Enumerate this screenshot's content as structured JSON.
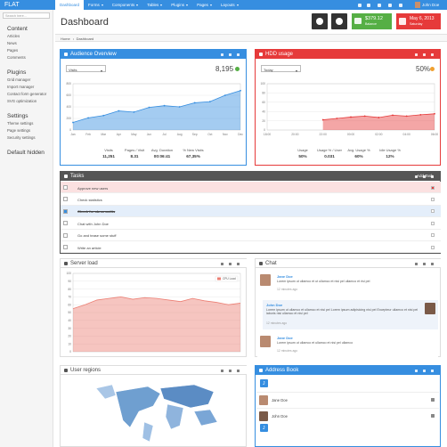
{
  "navbar": {
    "brand": "FLAT",
    "items": [
      "Dashboard",
      "Forms",
      "Components",
      "Tables",
      "Plugins",
      "Pages",
      "Layouts"
    ],
    "user": "John Doe"
  },
  "sidebar": {
    "search_placeholder": "Search here...",
    "sections": [
      {
        "title": "Content",
        "items": [
          "Articles",
          "News",
          "Pages",
          "Comments"
        ]
      },
      {
        "title": "Plugins",
        "items": [
          "Grid manager",
          "Import manager",
          "Contact form generator",
          "SVG optimization"
        ]
      },
      {
        "title": "Settings",
        "items": [
          "Theme settings",
          "Page settings",
          "Security settings"
        ]
      },
      {
        "title": "Default hidden",
        "items": []
      }
    ]
  },
  "header": {
    "title": "Dashboard",
    "balance": {
      "amount": "$379.12",
      "label": "Balance"
    },
    "date": {
      "date": "May 6, 2013",
      "day": "Saturday"
    }
  },
  "breadcrumb": [
    "Home",
    "Dashboard"
  ],
  "audience": {
    "title": "Audience Overview",
    "select": "Visits",
    "total": "8,195",
    "stats": [
      {
        "label": "Visits",
        "value": "11,251"
      },
      {
        "label": "Pages / Visit",
        "value": "8.31"
      },
      {
        "label": "Avg. Duration",
        "value": "00:06:41"
      },
      {
        "label": "% New Visits",
        "value": "67,35%"
      }
    ]
  },
  "hdd": {
    "title": "HDD usage",
    "select": "Today",
    "total": "50%",
    "stats": [
      {
        "label": "Usage",
        "value": "50%"
      },
      {
        "label": "Usage % / User",
        "value": "0.031"
      },
      {
        "label": "Avg. Usage %",
        "value": "60%"
      },
      {
        "label": "Idle Usage %",
        "value": "12%"
      }
    ]
  },
  "tasks": {
    "title": "Tasks",
    "add": "Add Task",
    "items": [
      {
        "text": "Approve new users",
        "state": "danger"
      },
      {
        "text": "Check statistics"
      },
      {
        "text": "Check for abnormalits",
        "state": "done"
      },
      {
        "text": "Chat with John Doe"
      },
      {
        "text": "Go and tease some stuff"
      },
      {
        "text": "Write an article"
      }
    ]
  },
  "server_load": {
    "title": "Server load"
  },
  "chat": {
    "title": "Chat",
    "messages": [
      {
        "name": "Jane Doe",
        "text": "Lorem ipsum ut ullamco et ut ullamco et nisi pel ullamco et risi pel",
        "time": "12 minutes ago",
        "side": "left"
      },
      {
        "name": "John Doe",
        "text": "Lorem ipsum ut ullamco et ullamco et nisi pel Lorem ipsum adipisicing nisi pel Excepteur ullamco et nisi pel laboris nisi ullamco et nisi pel",
        "time": "12 minutes ago",
        "side": "right"
      },
      {
        "name": "Jane Doe",
        "text": "Lorem ipsum ut ullamco et ullamco et nisi pel ullamco",
        "time": "12 minutes ago",
        "side": "left"
      }
    ]
  },
  "user_regions": {
    "title": "User regions"
  },
  "address_book": {
    "title": "Address Book",
    "groups": [
      {
        "letter": "J",
        "names": [
          "Jane Doe",
          "John Doe"
        ]
      },
      {
        "letter": "J",
        "names": []
      }
    ]
  },
  "chart_data": [
    {
      "type": "line",
      "area": true,
      "markers": true,
      "grid": true,
      "color": "#368ee0",
      "categories": [
        "Jan",
        "Feb",
        "Mar",
        "Apr",
        "May",
        "Jun",
        "Jul",
        "Aug",
        "Sep",
        "Oct",
        "Nov",
        "Dec"
      ],
      "values": [
        130,
        210,
        250,
        330,
        310,
        390,
        420,
        400,
        470,
        490,
        600,
        680
      ],
      "ylim": [
        0,
        800
      ],
      "yticks": [
        0,
        200,
        400,
        600,
        800
      ]
    },
    {
      "type": "line",
      "area": true,
      "markers": true,
      "grid": true,
      "color": "#e63a3a",
      "categories": [
        "18:00",
        null,
        "20:00",
        null,
        "22:00",
        null,
        "00:00",
        null,
        "02:00",
        null,
        "04:00",
        null,
        "06:00"
      ],
      "values": [
        null,
        null,
        null,
        null,
        22,
        25,
        28,
        30,
        27,
        32,
        30,
        33,
        35
      ],
      "ylim": [
        0,
        100
      ],
      "yticks": [
        0,
        20,
        40,
        60,
        80,
        100
      ]
    },
    {
      "type": "line",
      "area": true,
      "markers": false,
      "grid": true,
      "legend": "upper right",
      "series": [
        {
          "name": "CPU Load",
          "color": "#ec7f74",
          "values": [
            55,
            60,
            66,
            68,
            70,
            67,
            69,
            68,
            66,
            64,
            68,
            65,
            63,
            60,
            62
          ]
        }
      ],
      "ylim": [
        0,
        100
      ],
      "yticks": [
        0,
        10,
        20,
        30,
        40,
        50,
        60,
        70,
        80,
        90,
        100
      ]
    }
  ]
}
